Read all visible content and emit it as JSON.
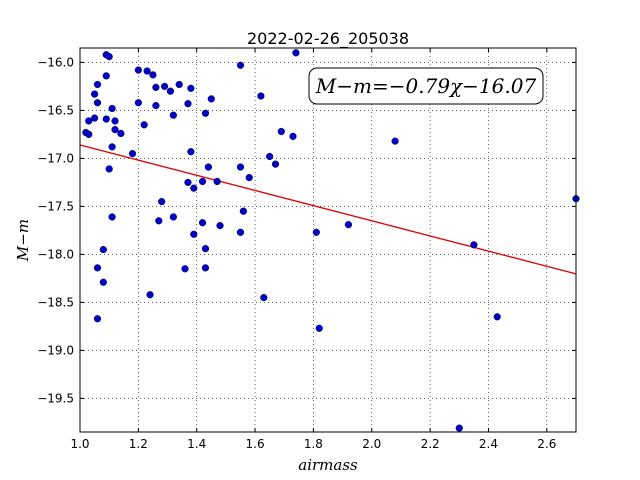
{
  "chart_data": {
    "type": "scatter",
    "title": "2022-02-26_205038",
    "xlabel": "airmass",
    "ylabel": "M−m",
    "xlim": [
      1.0,
      2.7
    ],
    "ylim": [
      -19.85,
      -15.85
    ],
    "y_inverted": false,
    "grid": true,
    "xticks": [
      "1.0",
      "1.2",
      "1.4",
      "1.6",
      "1.8",
      "2.0",
      "2.2",
      "2.4",
      "2.6"
    ],
    "yticks": [
      "-16.0",
      "-16.5",
      "-17.0",
      "-17.5",
      "-18.0",
      "-18.5",
      "-19.0",
      "-19.5"
    ],
    "annotation": "M−m=−0.79χ−16.07",
    "fit": {
      "slope": -0.79,
      "intercept": -16.07,
      "color": "#e00000"
    },
    "point_color": "#0000cc",
    "points": [
      [
        1.09,
        -15.92
      ],
      [
        1.1,
        -15.94
      ],
      [
        1.09,
        -16.14
      ],
      [
        1.06,
        -16.23
      ],
      [
        1.05,
        -16.33
      ],
      [
        1.06,
        -16.42
      ],
      [
        1.05,
        -16.58
      ],
      [
        1.03,
        -16.61
      ],
      [
        1.02,
        -16.73
      ],
      [
        1.03,
        -16.75
      ],
      [
        1.09,
        -16.59
      ],
      [
        1.11,
        -16.48
      ],
      [
        1.12,
        -16.61
      ],
      [
        1.12,
        -16.7
      ],
      [
        1.14,
        -16.74
      ],
      [
        1.11,
        -16.88
      ],
      [
        1.1,
        -17.11
      ],
      [
        1.11,
        -17.61
      ],
      [
        1.06,
        -18.14
      ],
      [
        1.08,
        -17.95
      ],
      [
        1.08,
        -18.29
      ],
      [
        1.06,
        -18.67
      ],
      [
        1.18,
        -16.95
      ],
      [
        1.2,
        -16.08
      ],
      [
        1.2,
        -16.42
      ],
      [
        1.22,
        -16.65
      ],
      [
        1.23,
        -16.09
      ],
      [
        1.25,
        -16.13
      ],
      [
        1.26,
        -16.26
      ],
      [
        1.26,
        -16.45
      ],
      [
        1.29,
        -16.25
      ],
      [
        1.31,
        -16.3
      ],
      [
        1.32,
        -16.55
      ],
      [
        1.34,
        -16.23
      ],
      [
        1.37,
        -16.43
      ],
      [
        1.38,
        -16.27
      ],
      [
        1.38,
        -16.93
      ],
      [
        1.37,
        -17.25
      ],
      [
        1.39,
        -17.31
      ],
      [
        1.36,
        -18.15
      ],
      [
        1.39,
        -17.79
      ],
      [
        1.42,
        -17.24
      ],
      [
        1.43,
        -16.53
      ],
      [
        1.45,
        -16.38
      ],
      [
        1.44,
        -17.09
      ],
      [
        1.47,
        -17.24
      ],
      [
        1.42,
        -17.67
      ],
      [
        1.43,
        -17.94
      ],
      [
        1.43,
        -18.14
      ],
      [
        1.48,
        -17.7
      ],
      [
        1.28,
        -17.45
      ],
      [
        1.27,
        -17.65
      ],
      [
        1.32,
        -17.61
      ],
      [
        1.24,
        -18.42
      ],
      [
        1.55,
        -16.03
      ],
      [
        1.55,
        -17.09
      ],
      [
        1.56,
        -17.55
      ],
      [
        1.55,
        -17.77
      ],
      [
        1.58,
        -17.2
      ],
      [
        1.62,
        -16.35
      ],
      [
        1.63,
        -18.45
      ],
      [
        1.65,
        -16.98
      ],
      [
        1.67,
        -17.06
      ],
      [
        1.69,
        -16.72
      ],
      [
        1.73,
        -16.77
      ],
      [
        1.74,
        -15.9
      ],
      [
        1.81,
        -17.77
      ],
      [
        1.82,
        -18.77
      ],
      [
        1.92,
        -17.69
      ],
      [
        2.08,
        -16.82
      ],
      [
        2.3,
        -19.81
      ],
      [
        2.35,
        -17.9
      ],
      [
        2.43,
        -18.65
      ],
      [
        2.7,
        -17.42
      ]
    ]
  }
}
